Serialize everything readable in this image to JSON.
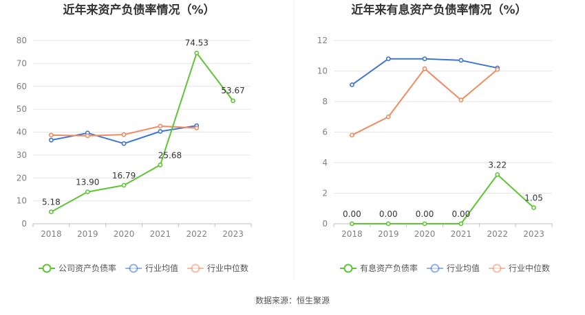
{
  "source": "数据来源：恒生聚源",
  "colors": {
    "green": "#5cc531",
    "blue": "#3b74d4",
    "orange": "#f08a5f",
    "grid": "#e6e6e6",
    "axis": "#bfbfbf",
    "divider": "#eeeeee"
  },
  "chart_data": [
    {
      "type": "line",
      "title": "近年来资产负债率情况（%）",
      "xlabel": "",
      "ylabel": "",
      "categories": [
        "2018",
        "2019",
        "2020",
        "2021",
        "2022",
        "2023"
      ],
      "ylim": [
        0,
        80
      ],
      "yticks": [
        "0",
        "10",
        "20",
        "30",
        "40",
        "50",
        "60",
        "70",
        "80"
      ],
      "legend_position": "bottom",
      "grid": true,
      "series": [
        {
          "name": "公司资产负债率",
          "color": "#5cc531",
          "values": [
            5.18,
            13.9,
            16.79,
            25.68,
            74.53,
            53.67
          ],
          "labels": [
            "5.18",
            "13.90",
            "16.79",
            "25.68",
            "74.53",
            "53.67"
          ]
        },
        {
          "name": "行业均值",
          "color": "#3b74d4",
          "values": [
            36.5,
            39.6,
            35.0,
            40.3,
            42.8,
            null
          ]
        },
        {
          "name": "行业中位数",
          "color": "#f08a5f",
          "values": [
            38.7,
            38.4,
            38.9,
            42.6,
            41.8,
            null
          ]
        }
      ]
    },
    {
      "type": "line",
      "title": "近年来有息资产负债率情况（%）",
      "xlabel": "",
      "ylabel": "",
      "categories": [
        "2018",
        "2019",
        "2020",
        "2021",
        "2022",
        "2023"
      ],
      "ylim": [
        0,
        12
      ],
      "yticks": [
        "0",
        "2",
        "4",
        "6",
        "8",
        "10",
        "12"
      ],
      "legend_position": "bottom",
      "grid": true,
      "series": [
        {
          "name": "有息资产负债率",
          "color": "#5cc531",
          "values": [
            0.0,
            0.0,
            0.0,
            0.0,
            3.22,
            1.05
          ],
          "labels": [
            "0.00",
            "0.00",
            "0.00",
            "0.00",
            "3.22",
            "1.05"
          ]
        },
        {
          "name": "行业均值",
          "color": "#3b74d4",
          "values": [
            9.1,
            10.8,
            10.8,
            10.7,
            10.2,
            null
          ]
        },
        {
          "name": "行业中位数",
          "color": "#f08a5f",
          "values": [
            5.8,
            7.0,
            10.15,
            8.1,
            10.1,
            null
          ]
        }
      ]
    }
  ]
}
